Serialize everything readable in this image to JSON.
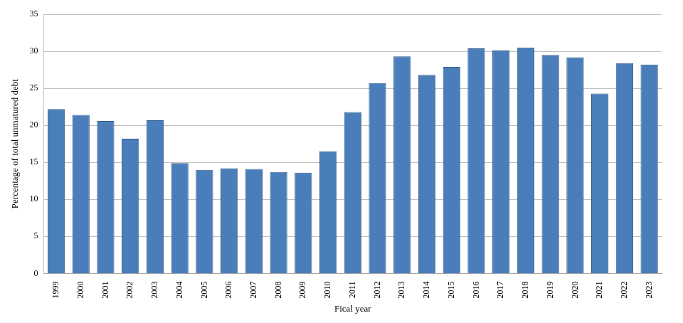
{
  "chart_data": {
    "type": "bar",
    "xlabel": "Fical year",
    "ylabel": "Percentage of total unmatured debt",
    "categories": [
      "1999",
      "2000",
      "2001",
      "2002",
      "2003",
      "2004",
      "2005",
      "2006",
      "2007",
      "2008",
      "2009",
      "2010",
      "2011",
      "2012",
      "2013",
      "2014",
      "2015",
      "2016",
      "2017",
      "2018",
      "2019",
      "2020",
      "2021",
      "2022",
      "2023"
    ],
    "values": [
      22.2,
      21.4,
      20.6,
      18.2,
      20.7,
      14.9,
      14.0,
      14.2,
      14.1,
      13.7,
      13.6,
      16.5,
      21.8,
      25.7,
      29.3,
      26.8,
      27.9,
      30.4,
      30.1,
      30.5,
      29.5,
      29.2,
      24.3,
      28.4,
      28.2
    ],
    "color": "#4a7ebb",
    "ylim": [
      0,
      35
    ],
    "yticks": [
      0,
      5,
      10,
      15,
      20,
      25,
      30,
      35
    ],
    "grid": true
  }
}
